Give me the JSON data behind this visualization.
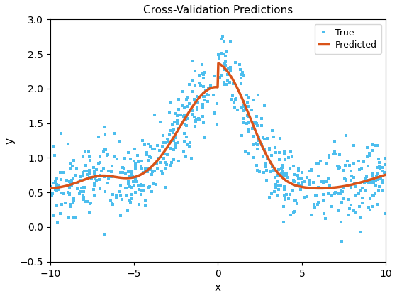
{
  "title": "Cross-Validation Predictions",
  "xlabel": "x",
  "ylabel": "y",
  "xlim": [
    -10,
    10
  ],
  "ylim": [
    -0.5,
    3
  ],
  "xticks": [
    -10,
    -5,
    0,
    5,
    10
  ],
  "yticks": [
    -0.5,
    0,
    0.5,
    1.0,
    1.5,
    2.0,
    2.5,
    3.0
  ],
  "true_color": "#4DBEEE",
  "predicted_color": "#D95319",
  "n_points": 700,
  "noise_std": 0.28,
  "seed": 0,
  "legend_labels": [
    "True",
    "Predicted"
  ],
  "marker_size": 3.5,
  "line_width": 2.5,
  "title_fontsize": 11,
  "label_fontsize": 11
}
